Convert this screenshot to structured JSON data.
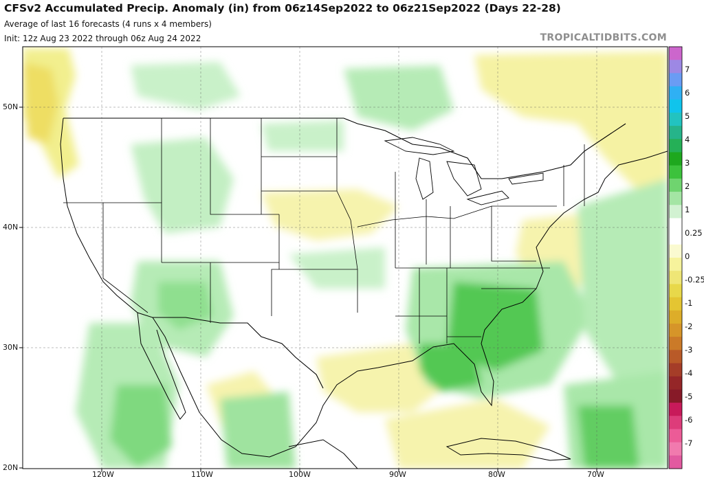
{
  "header": {
    "title": "CFSv2 Accumulated Precip. Anomaly (in) from 06z14Sep2022 to 06z21Sep2022 (Days 22-28)",
    "subtitle": "Average of last 16 forecasts (4 runs x 4 members)",
    "init_line": "Init: 12z Aug 23 2022 through 06z Aug 24 2022",
    "brand": "TROPICALTIDBITS.COM"
  },
  "map": {
    "lat_labels": [
      "50N",
      "40N",
      "30N",
      "20N"
    ],
    "lon_labels": [
      "120W",
      "110W",
      "100W",
      "90W",
      "80W",
      "70W"
    ]
  },
  "colorbar": {
    "labels": [
      "7",
      "6",
      "5",
      "4",
      "3",
      "2",
      "1",
      "0.25",
      "0",
      "-0.25",
      "-1",
      "-2",
      "-3",
      "-4",
      "-5",
      "-6",
      "-7"
    ],
    "colors": [
      "#cc66cc",
      "#9d88e4",
      "#6a9cf4",
      "#2fb0f4",
      "#10c4ec",
      "#22c3c0",
      "#26b48a",
      "#25b057",
      "#1ea81e",
      "#3cc23c",
      "#6fd46f",
      "#a4e5a4",
      "#d2f2d2",
      "#ffffff",
      "#ffffff",
      "#fafad0",
      "#f6f39c",
      "#efe676",
      "#e8d84a",
      "#e4c532",
      "#ddad29",
      "#d69529",
      "#cb7a28",
      "#b95a28",
      "#a53d28",
      "#952628",
      "#871a28",
      "#c81a5a",
      "#dd3c7a",
      "#ec5b97",
      "#f17aae",
      "#e25aa0"
    ]
  }
}
